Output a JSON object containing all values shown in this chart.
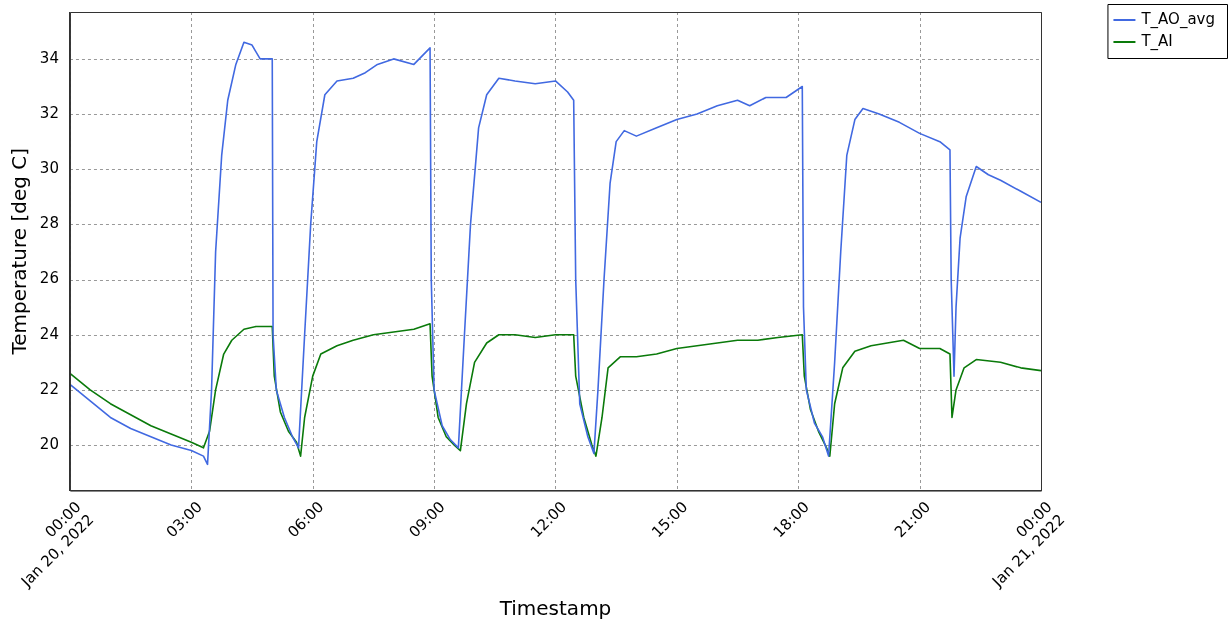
{
  "chart_data": {
    "type": "line",
    "xlabel": "Timestamp",
    "ylabel": "Temperature [deg C]",
    "xlim": [
      0,
      24
    ],
    "ylim": [
      18.35,
      35.7
    ],
    "xticks": [
      {
        "value": 0,
        "label": "00:00\nJan 20, 2022"
      },
      {
        "value": 3,
        "label": "03:00"
      },
      {
        "value": 6,
        "label": "06:00"
      },
      {
        "value": 9,
        "label": "09:00"
      },
      {
        "value": 12,
        "label": "12:00"
      },
      {
        "value": 15,
        "label": "15:00"
      },
      {
        "value": 18,
        "label": "18:00"
      },
      {
        "value": 21,
        "label": "21:00"
      },
      {
        "value": 24,
        "label": "00:00\nJan 21, 2022"
      }
    ],
    "yticks": [
      20,
      22,
      24,
      26,
      28,
      30,
      32,
      34
    ],
    "grid": true,
    "legend": "top right",
    "marker": "none",
    "line_style": "solid",
    "series": [
      {
        "name": "T_AO_avg",
        "color": "#4169e1",
        "x": [
          0,
          0.5,
          1,
          1.5,
          2,
          2.5,
          3,
          3.3,
          3.4,
          3.5,
          3.6,
          3.75,
          3.9,
          4.1,
          4.3,
          4.5,
          4.7,
          5.0,
          5.02,
          5.1,
          5.3,
          5.5,
          5.65,
          5.8,
          5.95,
          6.1,
          6.3,
          6.6,
          7,
          7.3,
          7.6,
          8,
          8.5,
          8.9,
          8.93,
          9,
          9.2,
          9.4,
          9.6,
          9.75,
          9.9,
          10.1,
          10.3,
          10.6,
          11,
          11.5,
          12,
          12.3,
          12.45,
          12.5,
          12.6,
          12.8,
          12.95,
          13.05,
          13.2,
          13.35,
          13.5,
          13.7,
          14,
          14.5,
          15,
          15.5,
          16,
          16.5,
          16.8,
          17.2,
          17.7,
          18.1,
          18.13,
          18.2,
          18.4,
          18.6,
          18.75,
          18.9,
          19.05,
          19.2,
          19.4,
          19.6,
          20,
          20.5,
          21,
          21.5,
          21.75,
          21.78,
          21.85,
          21.9,
          22,
          22.15,
          22.4,
          22.7,
          23,
          23.5,
          24
        ],
        "values": [
          22.2,
          21.6,
          21.0,
          20.6,
          20.3,
          20.0,
          19.8,
          19.6,
          19.3,
          22,
          27,
          30.5,
          32.5,
          33.8,
          34.6,
          34.5,
          34.0,
          34.0,
          24,
          22,
          21,
          20.3,
          19.9,
          24,
          28,
          31,
          32.7,
          33.2,
          33.3,
          33.5,
          33.8,
          34.0,
          33.8,
          34.4,
          26,
          22,
          20.7,
          20.2,
          19.9,
          24,
          28,
          31.5,
          32.7,
          33.3,
          33.2,
          33.1,
          33.2,
          32.8,
          32.5,
          26,
          21.5,
          20.3,
          19.7,
          22,
          26,
          29.5,
          31.0,
          31.4,
          31.2,
          31.5,
          31.8,
          32.0,
          32.3,
          32.5,
          32.3,
          32.6,
          32.6,
          33.0,
          25,
          22,
          20.8,
          20.3,
          19.6,
          23,
          27,
          30.5,
          31.8,
          32.2,
          32.0,
          31.7,
          31.3,
          31.0,
          30.7,
          26,
          22.5,
          25,
          27.5,
          29.0,
          30.1,
          29.8,
          29.6,
          29.2,
          28.8
        ]
      },
      {
        "name": "T_AI",
        "color": "#0a7a0a",
        "x": [
          0,
          0.5,
          1,
          1.5,
          2,
          2.5,
          3,
          3.3,
          3.45,
          3.6,
          3.8,
          4.0,
          4.3,
          4.6,
          5.0,
          5.05,
          5.2,
          5.4,
          5.6,
          5.7,
          5.8,
          6.0,
          6.2,
          6.6,
          7,
          7.5,
          8,
          8.5,
          8.9,
          8.95,
          9.1,
          9.3,
          9.5,
          9.65,
          9.8,
          10.0,
          10.3,
          10.6,
          11,
          11.5,
          12,
          12.45,
          12.5,
          12.7,
          12.9,
          13.0,
          13.15,
          13.3,
          13.6,
          14,
          14.5,
          15,
          15.5,
          16,
          16.5,
          17,
          17.5,
          18.1,
          18.15,
          18.3,
          18.5,
          18.7,
          18.78,
          18.9,
          19.1,
          19.4,
          19.8,
          20.2,
          20.6,
          21,
          21.5,
          21.75,
          21.8,
          21.9,
          22.1,
          22.4,
          23,
          23.5,
          24
        ],
        "values": [
          22.6,
          22.0,
          21.5,
          21.1,
          20.7,
          20.4,
          20.1,
          19.9,
          20.5,
          22.0,
          23.3,
          23.8,
          24.2,
          24.3,
          24.3,
          22.5,
          21.2,
          20.5,
          20.1,
          19.6,
          21.0,
          22.5,
          23.3,
          23.6,
          23.8,
          24.0,
          24.1,
          24.2,
          24.4,
          22.5,
          21,
          20.3,
          20.0,
          19.8,
          21.5,
          23.0,
          23.7,
          24.0,
          24.0,
          23.9,
          24.0,
          24.0,
          22.5,
          21,
          20.0,
          19.6,
          21,
          22.8,
          23.2,
          23.2,
          23.3,
          23.5,
          23.6,
          23.7,
          23.8,
          23.8,
          23.9,
          24.0,
          22.5,
          21.3,
          20.5,
          19.9,
          19.6,
          21.5,
          22.8,
          23.4,
          23.6,
          23.7,
          23.8,
          23.5,
          23.5,
          23.3,
          21.0,
          22.0,
          22.8,
          23.1,
          23.0,
          22.8,
          22.7
        ]
      }
    ]
  }
}
